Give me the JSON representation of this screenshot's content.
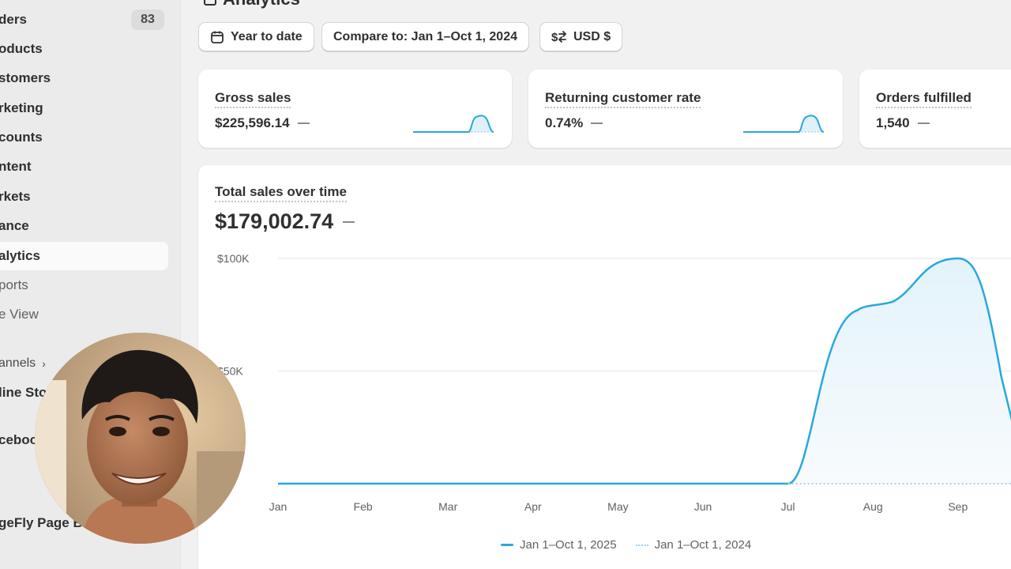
{
  "sidebar": {
    "orders": {
      "label": "ders",
      "count": "83"
    },
    "items": [
      {
        "label": "oducts"
      },
      {
        "label": "stomers"
      },
      {
        "label": "rketing"
      },
      {
        "label": "counts"
      },
      {
        "label": "ntent"
      },
      {
        "label": "rkets"
      },
      {
        "label": "ance"
      },
      {
        "label": "alytics"
      },
      {
        "label": "ports"
      },
      {
        "label": "e View"
      }
    ],
    "channels_label": "annels",
    "channel_items": [
      {
        "label": "line Sto"
      },
      {
        "label": "ceboo"
      },
      {
        "label": "geFly Page B"
      }
    ]
  },
  "header": {
    "title": "Analytics"
  },
  "filters": {
    "date_range": "Year to date",
    "compare": "Compare to: Jan 1–Oct 1, 2024",
    "currency": "USD $"
  },
  "metrics": [
    {
      "title": "Gross sales",
      "value": "$225,596.14"
    },
    {
      "title": "Returning customer rate",
      "value": "0.74%"
    },
    {
      "title": "Orders fulfilled",
      "value": "1,540"
    }
  ],
  "chart_data": {
    "type": "line",
    "title": "Total sales over time",
    "total": "$179,002.74",
    "categories": [
      "Jan",
      "Feb",
      "Mar",
      "Apr",
      "May",
      "Jun",
      "Jul",
      "Aug",
      "Sep"
    ],
    "y_ticks": [
      "$100K",
      "$50K"
    ],
    "ylim": [
      0,
      100000
    ],
    "series": [
      {
        "name": "Jan 1–Oct 1, 2025",
        "values": [
          0,
          0,
          0,
          0,
          0,
          0,
          0,
          79000,
          100000
        ],
        "style": "solid",
        "color": "#2aa7de"
      },
      {
        "name": "Jan 1–Oct 1, 2024",
        "values": [
          0,
          0,
          0,
          0,
          0,
          0,
          0,
          0,
          0
        ],
        "style": "dotted",
        "color": "#9fd3ec"
      }
    ]
  }
}
